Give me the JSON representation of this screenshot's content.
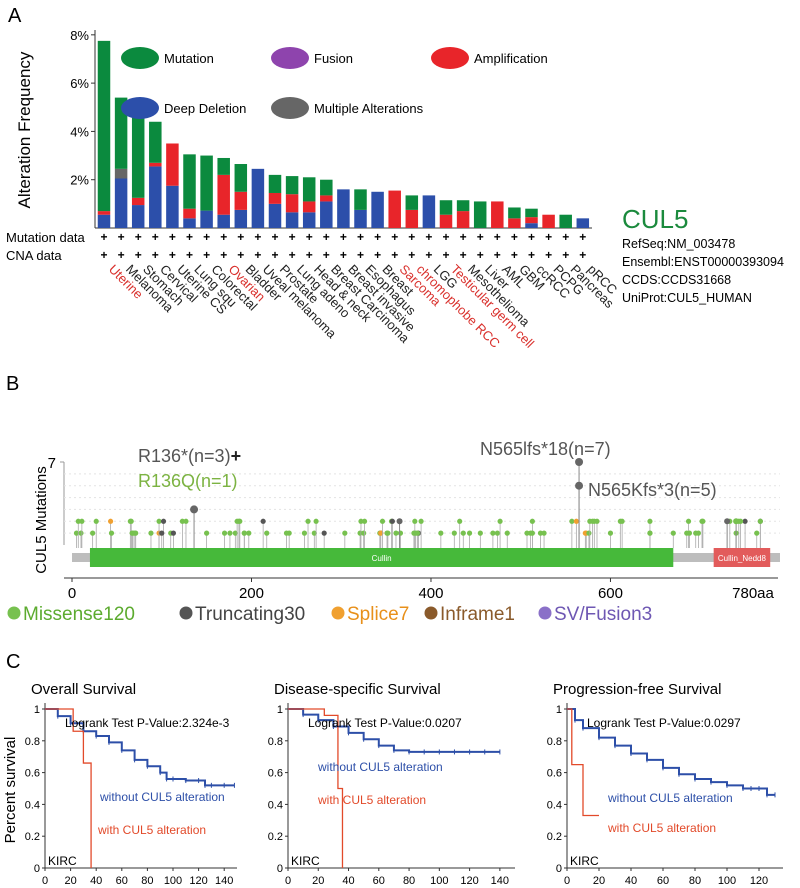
{
  "panels": {
    "a": "A",
    "b": "B",
    "c": "C"
  },
  "chart_data": [
    {
      "type": "bar",
      "title": "",
      "ylabel": "Alteration Frequency",
      "yticks": [
        "2%",
        "4%",
        "6%",
        "8%"
      ],
      "ylim": [
        0,
        8.2
      ],
      "legend": [
        {
          "name": "Mutation",
          "color": "#0b8a3e"
        },
        {
          "name": "Fusion",
          "color": "#8e44ad"
        },
        {
          "name": "Amplification",
          "color": "#e8252a"
        },
        {
          "name": "Deep Deletion",
          "color": "#2c4faa"
        },
        {
          "name": "Multiple Alterations",
          "color": "#666666"
        }
      ],
      "categories": [
        {
          "name": "Uterine",
          "red": true
        },
        {
          "name": "Melanoma",
          "red": false
        },
        {
          "name": "Stomach",
          "red": false
        },
        {
          "name": "Cervical",
          "red": false
        },
        {
          "name": "Uterine CS",
          "red": false
        },
        {
          "name": "Lung squ",
          "red": false
        },
        {
          "name": "Colorectal",
          "red": false
        },
        {
          "name": "Ovarian",
          "red": true
        },
        {
          "name": "Bladder",
          "red": false
        },
        {
          "name": "Uveal melanoma",
          "red": false
        },
        {
          "name": "Prostate",
          "red": false
        },
        {
          "name": "Lung adeno",
          "red": false
        },
        {
          "name": "Head & neck",
          "red": false
        },
        {
          "name": "Breast Carcinoma",
          "red": false
        },
        {
          "name": "Breast invasive",
          "red": false
        },
        {
          "name": "Esophagus",
          "red": false
        },
        {
          "name": "Breast",
          "red": false
        },
        {
          "name": "Sarcoma",
          "red": true
        },
        {
          "name": "chromophobe RCC",
          "red": true
        },
        {
          "name": "LGG",
          "red": false
        },
        {
          "name": "Testicular germ cell",
          "red": true
        },
        {
          "name": "Mesothelioma",
          "red": false
        },
        {
          "name": "Liver",
          "red": false
        },
        {
          "name": "AML",
          "red": false
        },
        {
          "name": "GBM",
          "red": false
        },
        {
          "name": "ccRCC",
          "red": false
        },
        {
          "name": "PCPG",
          "red": false
        },
        {
          "name": "Pancreas",
          "red": false
        },
        {
          "name": "pRCC",
          "red": false
        }
      ],
      "series": [
        {
          "name": "Deep Deletion",
          "color": "#2c4faa",
          "values": [
            0.55,
            2.05,
            0.95,
            2.55,
            1.75,
            0.4,
            0.72,
            0.55,
            0.75,
            2.45,
            1.0,
            0.65,
            0.65,
            1.1,
            1.6,
            0.75,
            1.5,
            0,
            0,
            1.35,
            0,
            0,
            0,
            0,
            0,
            0.2,
            0,
            0,
            0.4
          ]
        },
        {
          "name": "Multiple Alterations",
          "color": "#666666",
          "values": [
            0,
            0.4,
            0,
            0,
            0,
            0,
            0,
            0,
            0,
            0,
            0,
            0,
            0,
            0,
            0,
            0,
            0,
            0,
            0,
            0,
            0,
            0,
            0,
            0,
            0,
            0,
            0,
            0,
            0
          ]
        },
        {
          "name": "Amplification",
          "color": "#e8252a",
          "values": [
            0.15,
            0,
            0.3,
            0.15,
            1.75,
            0.4,
            0,
            1.65,
            0.75,
            0,
            0.45,
            0.75,
            0.45,
            0.25,
            0,
            0,
            0,
            1.55,
            0.75,
            0,
            0.55,
            0.7,
            0,
            1.1,
            0.4,
            0.25,
            0.55,
            0,
            0
          ]
        },
        {
          "name": "Mutation",
          "color": "#0b8a3e",
          "values": [
            7.05,
            2.95,
            3.55,
            1.7,
            0,
            2.25,
            2.28,
            0.7,
            1.15,
            0,
            0.75,
            0.75,
            1.0,
            0.65,
            0,
            0.85,
            0,
            0,
            0.6,
            0,
            0.6,
            0.45,
            1.1,
            0,
            0.45,
            0.35,
            0,
            0.55,
            0
          ]
        }
      ],
      "gene": "CUL5",
      "gene_info": [
        "RefSeq:NM_003478",
        "Ensembl:ENST00000393094",
        "CCDS:CCDS31668",
        "UniProt:CUL5_HUMAN"
      ],
      "row_labels": [
        "Mutation data",
        "CNA data"
      ],
      "row_marker": "+"
    },
    {
      "type": "lollipop",
      "ylabel": "CUL5 Mutations",
      "ytick": "7",
      "ymax": 7,
      "xlim": [
        0,
        780
      ],
      "xticks": [
        0,
        200,
        400,
        600
      ],
      "xticklabels": [
        "0",
        "200",
        "400",
        "600"
      ],
      "xend_label": "780aa",
      "domains": [
        {
          "name": "Cullin",
          "start": 20,
          "end": 670,
          "color": "#46b93a"
        },
        {
          "name": "Cullin_Nedd8",
          "start": 715,
          "end": 778,
          "color": "#e25b5b"
        }
      ],
      "mutation_sites": [
        {
          "pos": 136,
          "count": 3,
          "type": "truncating"
        },
        {
          "pos": 565,
          "count": 7,
          "type": "truncating"
        },
        {
          "pos": 565,
          "count": 5,
          "type": "truncating"
        },
        {
          "pos": 365,
          "count": 2,
          "type": "truncating"
        },
        {
          "pos": 730,
          "count": 2,
          "type": "truncating"
        },
        {
          "pos": 740,
          "count": 2,
          "type": "missense"
        }
      ],
      "annotations": [
        {
          "text": "R136*(n=3)",
          "suffix": "+",
          "color": "#555555"
        },
        {
          "text": "R136Q(n=1)",
          "color": "#7cb342"
        },
        {
          "text": "N565lfs*18(n=7)",
          "color": "#555555"
        },
        {
          "text": "N565Kfs*3(n=5)",
          "color": "#555555"
        }
      ],
      "legend": [
        {
          "name": "Missense120",
          "color": "#77c14f",
          "text_color": "#5cab2f"
        },
        {
          "name": "Truncating30",
          "color": "#555555",
          "text_color": "#444444"
        },
        {
          "name": "Splice7",
          "color": "#f0a030",
          "text_color": "#e8901a"
        },
        {
          "name": "Inframe1",
          "color": "#8a5a2b",
          "text_color": "#8a5a2b"
        },
        {
          "name": "SV/Fusion3",
          "color": "#8a70c8",
          "text_color": "#6e57b3"
        }
      ]
    },
    {
      "type": "line",
      "title": "Overall Survival",
      "ylabel": "Percent survival",
      "pvalue": "Logrank Test P-Value:2.324e-3",
      "cohort": "KIRC",
      "yticks": [
        "1",
        "0.8",
        "0.6",
        "0.4",
        "0.2",
        "0"
      ],
      "xticks": [
        "0",
        "20",
        "40",
        "60",
        "80",
        "100",
        "120",
        "140"
      ],
      "xlim": [
        0,
        150
      ],
      "ylim": [
        0,
        1
      ],
      "series": [
        {
          "name": "without CUL5 alteration",
          "color": "#2d4fa8",
          "x": [
            0,
            10,
            20,
            30,
            40,
            50,
            60,
            70,
            80,
            90,
            95,
            100,
            110,
            120,
            125,
            130,
            140,
            148
          ],
          "y": [
            1,
            0.955,
            0.91,
            0.86,
            0.83,
            0.79,
            0.74,
            0.68,
            0.64,
            0.6,
            0.56,
            0.56,
            0.55,
            0.55,
            0.52,
            0.52,
            0.52,
            0.52
          ]
        },
        {
          "name": "with CUL5 alteration",
          "color": "#e24a2a",
          "x": [
            0,
            22,
            22,
            30,
            30,
            36,
            36
          ],
          "y": [
            1,
            1,
            0.86,
            0.86,
            0.66,
            0.66,
            0
          ]
        }
      ]
    },
    {
      "type": "line",
      "title": "Disease-specific Survival",
      "pvalue": "Logrank Test P-Value:0.0207",
      "cohort": "KIRC",
      "yticks": [
        "1",
        "0.8",
        "0.6",
        "0.4",
        "0.2",
        "0"
      ],
      "xticks": [
        "0",
        "20",
        "40",
        "60",
        "80",
        "100",
        "120",
        "140"
      ],
      "xlim": [
        0,
        150
      ],
      "ylim": [
        0,
        1
      ],
      "series": [
        {
          "name": "without CUL5 alteration",
          "color": "#2d4fa8",
          "x": [
            0,
            10,
            20,
            30,
            40,
            50,
            60,
            70,
            80,
            90,
            100,
            110,
            120,
            130,
            140
          ],
          "y": [
            1,
            0.965,
            0.93,
            0.89,
            0.85,
            0.81,
            0.77,
            0.74,
            0.73,
            0.73,
            0.73,
            0.73,
            0.73,
            0.73,
            0.73
          ]
        },
        {
          "name": "with CUL5 alteration",
          "color": "#e24a2a",
          "x": [
            0,
            24,
            24,
            33,
            33,
            36,
            36
          ],
          "y": [
            1,
            1,
            0.96,
            0.96,
            0.5,
            0.5,
            0
          ]
        }
      ]
    },
    {
      "type": "line",
      "title": "Progression-free Survival",
      "pvalue": "Logrank Test P-Value:0.0297",
      "cohort": "KIRC",
      "yticks": [
        "1",
        "0.8",
        "0.6",
        "0.4",
        "0.2",
        "0"
      ],
      "xticks": [
        "0",
        "20",
        "40",
        "60",
        "80",
        "100",
        "120"
      ],
      "xlim": [
        0,
        135
      ],
      "ylim": [
        0,
        1
      ],
      "series": [
        {
          "name": "without CUL5 alteration",
          "color": "#2d4fa8",
          "x": [
            0,
            5,
            10,
            20,
            30,
            40,
            50,
            60,
            70,
            80,
            90,
            100,
            110,
            115,
            120,
            125,
            130
          ],
          "y": [
            1,
            0.93,
            0.88,
            0.82,
            0.77,
            0.72,
            0.68,
            0.63,
            0.59,
            0.56,
            0.54,
            0.52,
            0.5,
            0.5,
            0.5,
            0.46,
            0.46
          ]
        },
        {
          "name": "with CUL5 alteration",
          "color": "#e24a2a",
          "x": [
            0,
            3,
            3,
            10,
            10,
            20,
            20
          ],
          "y": [
            1,
            1,
            0.65,
            0.65,
            0.33,
            0.33,
            0.33
          ]
        }
      ]
    }
  ]
}
